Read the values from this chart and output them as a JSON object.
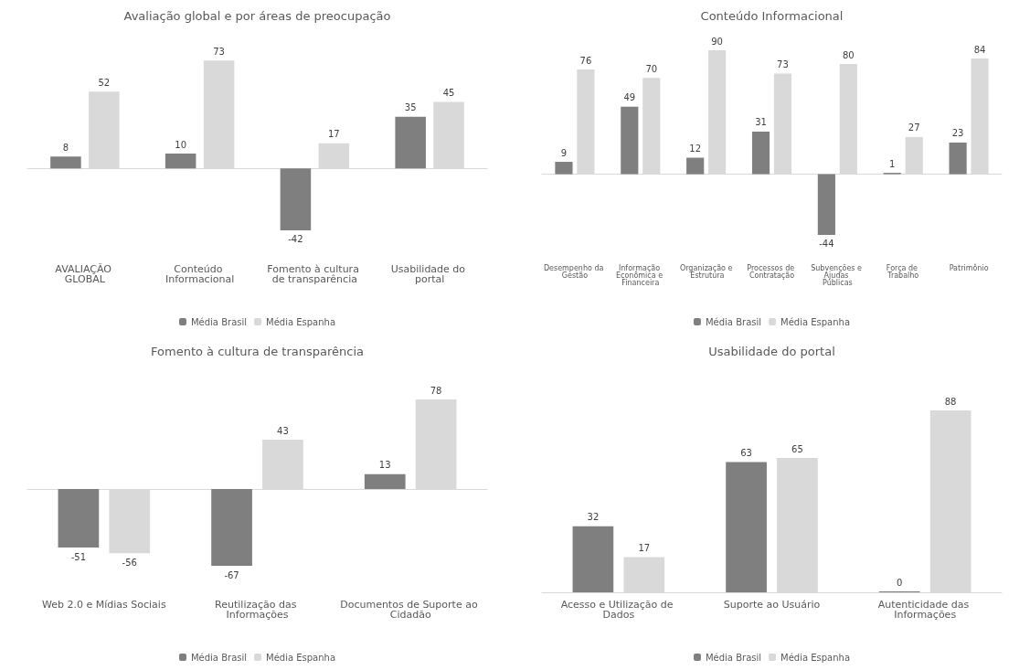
{
  "chart_data": [
    {
      "type": "bar",
      "title": "Avaliação global e por áreas de preocupação",
      "categories": [
        "AVALIAÇÃO GLOBAL",
        "Conteúdo Informacional",
        "Fomento à cultura de transparência",
        "Usabilidade do portal"
      ],
      "series": [
        {
          "name": "Média Brasil",
          "color": "#7f7f7f",
          "values": [
            8,
            10,
            -42,
            35
          ]
        },
        {
          "name": "Média Espanha",
          "color": "#d9d9d9",
          "values": [
            52,
            73,
            17,
            45
          ]
        }
      ],
      "data_labels": true,
      "legend": "bottom"
    },
    {
      "type": "bar",
      "title": "Conteúdo Informacional",
      "categories": [
        "Desempenho da Gestão",
        "Informação Econômica e Financeira",
        "Organização e Estrutura",
        "Processos de Contratação",
        "Subvenções e Ajudas Públicas",
        "Força de Trabalho",
        "Patrimônio"
      ],
      "series": [
        {
          "name": "Média Brasil",
          "color": "#7f7f7f",
          "values": [
            9,
            49,
            12,
            31,
            -44,
            1,
            23
          ]
        },
        {
          "name": "Média Espanha",
          "color": "#d9d9d9",
          "values": [
            76,
            70,
            90,
            73,
            80,
            27,
            84
          ]
        }
      ],
      "data_labels": true,
      "legend": "bottom"
    },
    {
      "type": "bar",
      "title": "Fomento à cultura de transparência",
      "categories": [
        "Web 2.0 e Mídias Sociais",
        "Reutilização das Informações",
        "Documentos de Suporte ao Cidadão"
      ],
      "series": [
        {
          "name": "Média Brasil",
          "color": "#7f7f7f",
          "values": [
            -51,
            -67,
            13
          ]
        },
        {
          "name": "Média Espanha",
          "color": "#d9d9d9",
          "values": [
            -56,
            43,
            78
          ]
        }
      ],
      "data_labels": true,
      "legend": "bottom"
    },
    {
      "type": "bar",
      "title": "Usabilidade do portal",
      "categories": [
        "Acesso e Utilização de Dados",
        "Suporte ao Usuário",
        "Autenticidade das Informações"
      ],
      "series": [
        {
          "name": "Média Brasil",
          "color": "#7f7f7f",
          "values": [
            32,
            63,
            0
          ]
        },
        {
          "name": "Média Espanha",
          "color": "#d9d9d9",
          "values": [
            17,
            65,
            88
          ]
        }
      ],
      "data_labels": true,
      "legend": "bottom"
    }
  ]
}
